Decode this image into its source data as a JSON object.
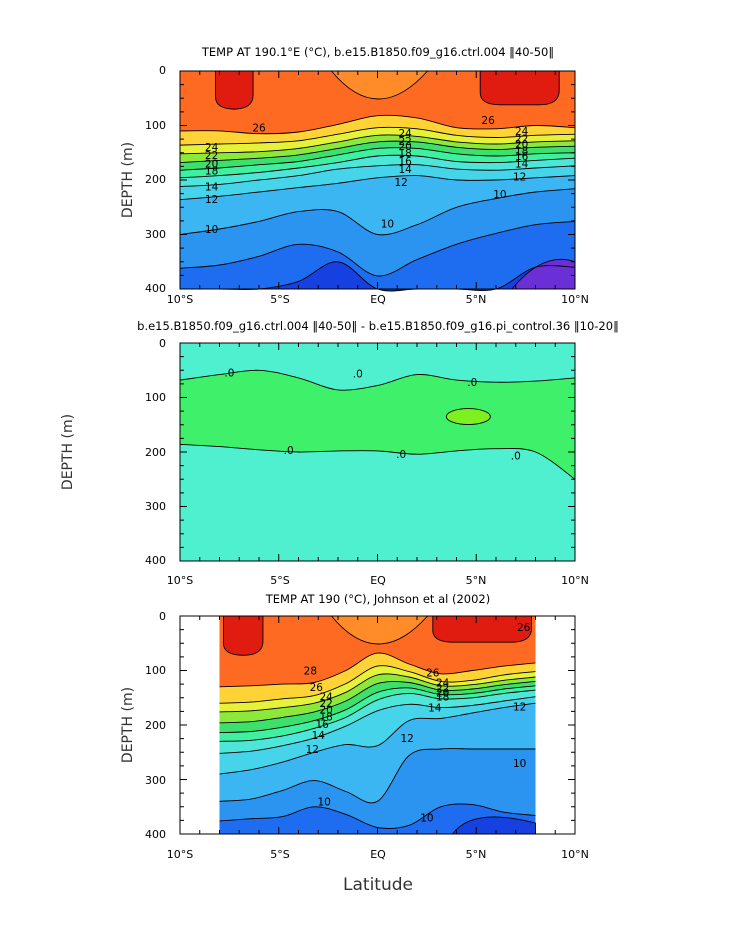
{
  "palette": [
    "#6a2fd6",
    "#1640e0",
    "#1e6cf0",
    "#2a94f0",
    "#3cb6f2",
    "#46d4ea",
    "#4ee6d8",
    "#3ef0a0",
    "#3ee06c",
    "#8ce83a",
    "#e6f23a",
    "#ffd236",
    "#ffb02e",
    "#ff8c28",
    "#ff6a22",
    "#f04818",
    "#e01c10"
  ],
  "chart_data": [
    {
      "type": "contour",
      "title": "TEMP AT 190.1°E (°C), b.e15.B1850.f09_g16.ctrl.004 ‖40-50‖",
      "xlabel": "",
      "ylabel": "DEPTH (m)",
      "xlim": [
        -10,
        10
      ],
      "ylim": [
        400,
        0
      ],
      "x_ticks": [
        "10°S",
        "5°S",
        "EQ",
        "5°N",
        "10°N"
      ],
      "y_ticks": [
        "0",
        "100",
        "200",
        "300",
        "400"
      ],
      "contour_levels": [
        {
          "value": 26,
          "depth": [
            110,
            110,
            115,
            112,
            98,
            82,
            86,
            104,
            106,
            100,
            104
          ]
        },
        {
          "value": 24,
          "depth": [
            136,
            134,
            132,
            128,
            116,
            104,
            106,
            118,
            122,
            118,
            116
          ]
        },
        {
          "value": 22,
          "depth": [
            152,
            150,
            148,
            142,
            130,
            118,
            120,
            130,
            134,
            130,
            128
          ]
        },
        {
          "value": 20,
          "depth": [
            168,
            164,
            160,
            154,
            142,
            130,
            130,
            140,
            144,
            140,
            138
          ]
        },
        {
          "value": 18,
          "depth": [
            182,
            178,
            172,
            166,
            154,
            142,
            142,
            152,
            156,
            152,
            150
          ]
        },
        {
          "value": 16,
          "depth": [
            196,
            192,
            186,
            178,
            168,
            156,
            156,
            166,
            168,
            164,
            160
          ]
        },
        {
          "value": 14,
          "depth": [
            212,
            208,
            200,
            192,
            180,
            174,
            172,
            180,
            182,
            178,
            174
          ]
        },
        {
          "value": 12,
          "depth": [
            236,
            230,
            222,
            214,
            206,
            196,
            192,
            200,
            200,
            196,
            192
          ]
        },
        {
          "value": 10,
          "depth": [
            300,
            290,
            276,
            258,
            258,
            300,
            282,
            250,
            234,
            222,
            216
          ]
        },
        {
          "value": 8,
          "depth": [
            362,
            356,
            340,
            318,
            332,
            376,
            346,
            318,
            298,
            282,
            276
          ]
        },
        {
          "value": 6,
          "depth": [
            400,
            400,
            400,
            386,
            350,
            400,
            400,
            400,
            400,
            360,
            360
          ]
        }
      ],
      "contour_labels": [
        {
          "text": "26",
          "x": -6,
          "depth": 104
        },
        {
          "text": "26",
          "x": 5.6,
          "depth": 90
        },
        {
          "text": "24",
          "x": -8.4,
          "depth": 139
        },
        {
          "text": "24",
          "x": 1.4,
          "depth": 114
        },
        {
          "text": "24",
          "x": 7.3,
          "depth": 110
        },
        {
          "text": "22",
          "x": -8.4,
          "depth": 154
        },
        {
          "text": "22",
          "x": 1.4,
          "depth": 128
        },
        {
          "text": "22",
          "x": 7.3,
          "depth": 124
        },
        {
          "text": "20",
          "x": -8.4,
          "depth": 170
        },
        {
          "text": "20",
          "x": 1.4,
          "depth": 138
        },
        {
          "text": "20",
          "x": 7.3,
          "depth": 134
        },
        {
          "text": "18",
          "x": -8.4,
          "depth": 183
        },
        {
          "text": "18",
          "x": 1.4,
          "depth": 150
        },
        {
          "text": "18",
          "x": 7.3,
          "depth": 146
        },
        {
          "text": "16",
          "x": 1.4,
          "depth": 165
        },
        {
          "text": "16",
          "x": 7.3,
          "depth": 156
        },
        {
          "text": "14",
          "x": -8.4,
          "depth": 212
        },
        {
          "text": "14",
          "x": 1.4,
          "depth": 180
        },
        {
          "text": "14",
          "x": 7.3,
          "depth": 170
        },
        {
          "text": "12",
          "x": -8.4,
          "depth": 235
        },
        {
          "text": "12",
          "x": 1.2,
          "depth": 204
        },
        {
          "text": "12",
          "x": 7.2,
          "depth": 194
        },
        {
          "text": "10",
          "x": -8.4,
          "depth": 290
        },
        {
          "text": "10",
          "x": 0.5,
          "depth": 280
        },
        {
          "text": "10",
          "x": 6.2,
          "depth": 226
        }
      ]
    },
    {
      "type": "contour",
      "title": "b.e15.B1850.f09_g16.ctrl.004 ‖40-50‖ - b.e15.B1850.f09_g16.pi_control.36 ‖10-20‖",
      "xlabel": "",
      "ylabel": "DEPTH (m)",
      "xlim": [
        -10,
        10
      ],
      "ylim": [
        400,
        0
      ],
      "x_ticks": [
        "10°S",
        "5°S",
        "EQ",
        "5°N",
        "10°N"
      ],
      "y_ticks": [
        "0",
        "100",
        "200",
        "300",
        "400"
      ],
      "contour_levels": [
        {
          "value": 0,
          "upper_depth": [
            68,
            58,
            50,
            64,
            86,
            78,
            58,
            68,
            72,
            70,
            64
          ],
          "lower_depth": [
            186,
            190,
            196,
            200,
            198,
            198,
            204,
            198,
            194,
            200,
            250
          ]
        }
      ],
      "contour_labels": [
        {
          "text": ".0",
          "x": -7.5,
          "depth": 54
        },
        {
          "text": ".0",
          "x": -1.0,
          "depth": 56
        },
        {
          "text": ".0",
          "x": 4.8,
          "depth": 72
        },
        {
          "text": ".0",
          "x": -4.5,
          "depth": 196
        },
        {
          "text": ".0",
          "x": 1.2,
          "depth": 204
        },
        {
          "text": ".0",
          "x": 7.0,
          "depth": 206
        }
      ]
    },
    {
      "type": "contour",
      "title": "TEMP AT 190 (°C), Johnson et al (2002)",
      "xlabel": "Latitude",
      "ylabel": "DEPTH (m)",
      "xlim": [
        -10,
        10
      ],
      "ylim": [
        400,
        0
      ],
      "data_xlim": [
        -8,
        8
      ],
      "x_ticks": [
        "10°S",
        "5°S",
        "EQ",
        "5°N",
        "10°N"
      ],
      "y_ticks": [
        "0",
        "100",
        "200",
        "300",
        "400"
      ],
      "contour_levels": [
        {
          "value": 26,
          "depth": [
            130,
            128,
            125,
            122,
            100,
            68,
            88,
            106,
            100,
            92,
            86
          ]
        },
        {
          "value": 24,
          "depth": [
            160,
            158,
            152,
            146,
            124,
            92,
            102,
            120,
            118,
            108,
            102
          ]
        },
        {
          "value": 22,
          "depth": [
            176,
            174,
            168,
            160,
            140,
            108,
            112,
            128,
            126,
            118,
            112
          ]
        },
        {
          "value": 20,
          "depth": [
            196,
            194,
            186,
            176,
            156,
            124,
            122,
            136,
            134,
            126,
            120
          ]
        },
        {
          "value": 18,
          "depth": [
            214,
            212,
            204,
            192,
            172,
            140,
            132,
            144,
            142,
            134,
            128
          ]
        },
        {
          "value": 16,
          "depth": [
            230,
            228,
            220,
            206,
            186,
            154,
            142,
            152,
            150,
            142,
            136
          ]
        },
        {
          "value": 14,
          "depth": [
            252,
            248,
            238,
            224,
            202,
            174,
            162,
            168,
            164,
            156,
            148
          ]
        },
        {
          "value": 12,
          "depth": [
            290,
            282,
            268,
            250,
            236,
            238,
            192,
            188,
            178,
            168,
            160
          ]
        },
        {
          "value": 10,
          "depth": [
            340,
            336,
            320,
            302,
            322,
            340,
            256,
            244,
            244,
            244,
            244
          ]
        },
        {
          "value": 8,
          "depth": [
            376,
            372,
            368,
            350,
            364,
            388,
            384,
            350,
            346,
            360,
            366
          ]
        }
      ],
      "contour_labels": [
        {
          "text": "28",
          "x": -3.4,
          "depth": 100
        },
        {
          "text": "26",
          "x": -3.1,
          "depth": 130
        },
        {
          "text": "26",
          "x": 2.8,
          "depth": 104
        },
        {
          "text": "26",
          "x": 7.4,
          "depth": 20
        },
        {
          "text": "24",
          "x": -2.6,
          "depth": 148
        },
        {
          "text": "24",
          "x": 3.3,
          "depth": 122
        },
        {
          "text": "22",
          "x": -2.6,
          "depth": 160
        },
        {
          "text": "22",
          "x": 3.3,
          "depth": 132
        },
        {
          "text": "20",
          "x": -2.6,
          "depth": 172
        },
        {
          "text": "20",
          "x": 3.3,
          "depth": 140
        },
        {
          "text": "18",
          "x": -2.6,
          "depth": 184
        },
        {
          "text": "18",
          "x": 3.3,
          "depth": 148
        },
        {
          "text": "16",
          "x": -2.8,
          "depth": 198
        },
        {
          "text": "14",
          "x": -3.0,
          "depth": 218
        },
        {
          "text": "14",
          "x": 2.9,
          "depth": 168
        },
        {
          "text": "12",
          "x": -3.3,
          "depth": 244
        },
        {
          "text": "12",
          "x": 1.5,
          "depth": 224
        },
        {
          "text": "12",
          "x": 7.2,
          "depth": 166
        },
        {
          "text": "10",
          "x": -2.7,
          "depth": 340
        },
        {
          "text": "10",
          "x": 2.5,
          "depth": 370
        },
        {
          "text": "10",
          "x": 7.2,
          "depth": 270
        }
      ]
    }
  ]
}
